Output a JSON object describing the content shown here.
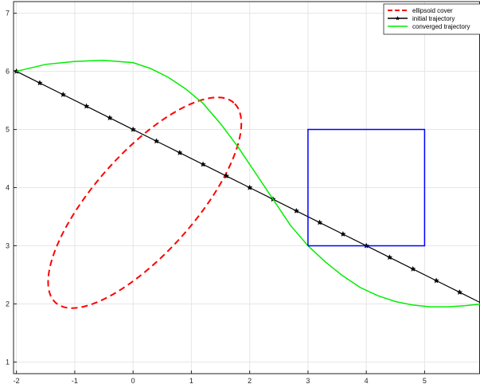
{
  "chart_data": {
    "type": "line",
    "title": "",
    "xlabel": "",
    "ylabel": "",
    "xlim": [
      -2.05,
      5.95
    ],
    "ylim": [
      0.8,
      7.2
    ],
    "xticks": [
      -2,
      -1,
      0,
      1,
      2,
      3,
      4,
      5
    ],
    "yticks": [
      1,
      2,
      3,
      4,
      5,
      6,
      7
    ],
    "grid": true,
    "legend_position": "top-right",
    "series": [
      {
        "name": "ellipsoid cover",
        "kind": "ellipse",
        "color": "#ff0000",
        "style": "dashed",
        "center": [
          0.2,
          3.74
        ],
        "semi_axes": [
          2.3,
          0.86
        ],
        "angle_deg": 48.4
      },
      {
        "name": "initial trajectory",
        "color": "#000000",
        "style": "solid",
        "marker": "star",
        "x": [
          -2.0,
          -1.6,
          -1.2,
          -0.8,
          -0.4,
          0.0,
          0.4,
          0.8,
          1.2,
          1.6,
          2.0,
          2.4,
          2.8,
          3.2,
          3.6,
          4.0,
          4.4,
          4.8,
          5.2,
          5.6,
          6.0
        ],
        "y": [
          6.0,
          5.8,
          5.6,
          5.4,
          5.2,
          5.0,
          4.8,
          4.6,
          4.4,
          4.2,
          4.0,
          3.8,
          3.6,
          3.4,
          3.2,
          3.0,
          2.8,
          2.6,
          2.4,
          2.2,
          2.0
        ]
      },
      {
        "name": "converged trajectory",
        "color": "#00ee00",
        "style": "solid",
        "x": [
          -2.0,
          -1.5,
          -1.0,
          -0.5,
          0.0,
          0.3,
          0.6,
          0.9,
          1.2,
          1.5,
          1.8,
          2.1,
          2.4,
          2.7,
          3.0,
          3.3,
          3.6,
          3.9,
          4.2,
          4.5,
          4.8,
          5.1,
          5.4,
          5.7,
          6.0
        ],
        "y": [
          6.0,
          6.12,
          6.17,
          6.19,
          6.15,
          6.05,
          5.9,
          5.7,
          5.45,
          5.1,
          4.7,
          4.25,
          3.8,
          3.35,
          3.0,
          2.72,
          2.48,
          2.28,
          2.14,
          2.04,
          1.98,
          1.95,
          1.95,
          1.97,
          2.0
        ]
      },
      {
        "name": "",
        "kind": "rectangle",
        "color": "#0000ff",
        "style": "solid",
        "x": [
          3.0,
          5.0,
          5.0,
          3.0,
          3.0
        ],
        "y": [
          3.0,
          3.0,
          5.0,
          5.0,
          3.0
        ]
      }
    ]
  }
}
